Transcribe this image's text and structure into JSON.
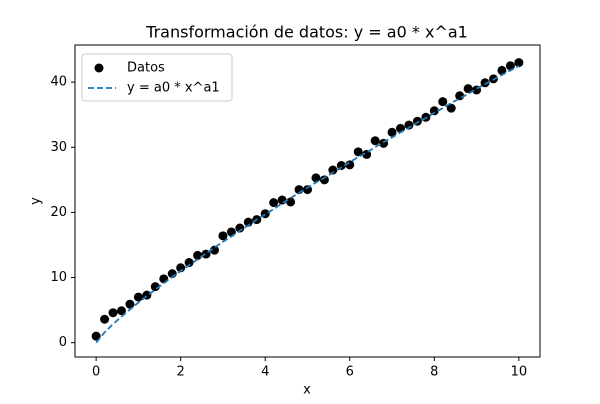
{
  "chart_data": {
    "type": "scatter",
    "title": "Transformación de datos: y = a0 * x^a1",
    "x_label": "x",
    "y_label": "y",
    "x": [
      0,
      0.2,
      0.4,
      0.6,
      0.8,
      1.0,
      1.2,
      1.4,
      1.6,
      1.8,
      2.0,
      2.2,
      2.4,
      2.6,
      2.8,
      3.0,
      3.2,
      3.4,
      3.6,
      3.8,
      4.0,
      4.2,
      4.4,
      4.6,
      4.8,
      5.0,
      5.2,
      5.4,
      5.6,
      5.8,
      6.0,
      6.2,
      6.4,
      6.6,
      6.8,
      7.0,
      7.2,
      7.4,
      7.6,
      7.8,
      8.0,
      8.2,
      8.4,
      8.6,
      8.8,
      9.0,
      9.2,
      9.4,
      9.6,
      9.8,
      10.0
    ],
    "series": [
      {
        "name": "Datos",
        "type": "scatter",
        "color": "#000000",
        "values": [
          1.0,
          3.6,
          4.6,
          4.9,
          5.9,
          7.0,
          7.3,
          8.6,
          9.8,
          10.6,
          11.5,
          12.3,
          13.4,
          13.6,
          14.2,
          16.4,
          17.0,
          17.6,
          18.5,
          18.9,
          19.8,
          21.5,
          21.9,
          21.6,
          23.5,
          23.5,
          25.3,
          25.0,
          26.5,
          27.2,
          27.3,
          29.3,
          28.9,
          31.0,
          30.6,
          32.3,
          32.9,
          33.4,
          34.0,
          34.6,
          35.6,
          37.0,
          36.0,
          37.9,
          39.0,
          38.8,
          39.9,
          40.5,
          41.8,
          42.5,
          43.0
        ]
      },
      {
        "name": "y = a0 * x^a1",
        "type": "line",
        "color": "#1f77b4",
        "dashed": true,
        "values": [
          0,
          1.59,
          2.85,
          4.0,
          5.1,
          6.15,
          7.17,
          8.16,
          9.13,
          10.08,
          11.0,
          11.9,
          12.8,
          13.7,
          14.6,
          15.5,
          16.3,
          17.2,
          18.0,
          18.9,
          19.7,
          20.5,
          21.4,
          22.2,
          23.0,
          23.8,
          24.6,
          25.3,
          26.1,
          26.9,
          27.7,
          28.5,
          29.2,
          30.0,
          30.8,
          31.5,
          32.3,
          33.0,
          33.8,
          34.5,
          35.3,
          36.0,
          36.8,
          37.5,
          38.2,
          39.0,
          39.7,
          40.4,
          41.1,
          41.8,
          42.5
        ]
      }
    ],
    "xlim": [
      -0.5,
      10.5
    ],
    "ylim": [
      -2.2,
      45.7
    ],
    "xticks": [
      0,
      2,
      4,
      6,
      8,
      10
    ],
    "yticks": [
      0,
      10,
      20,
      30,
      40
    ],
    "grid": false,
    "legend": "upper-left"
  }
}
